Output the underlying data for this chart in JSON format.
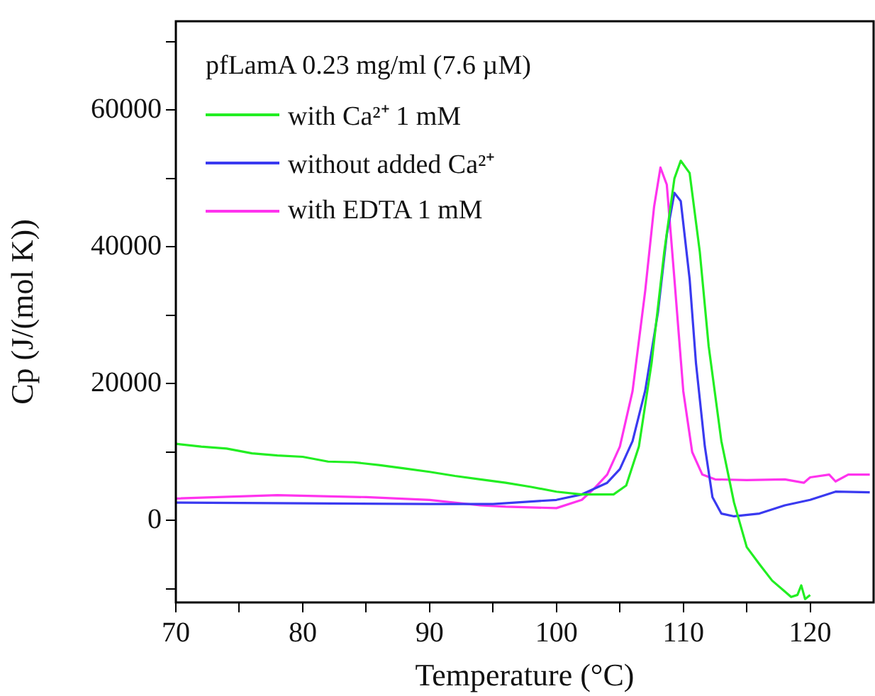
{
  "chart_data": {
    "type": "line",
    "xlabel": "Temperature (°C)",
    "ylabel": "Cp (J/(mol K))",
    "annotations": [
      "pfLamA 0.23 mg/ml (7.6 µM)"
    ],
    "xlim": [
      70,
      125
    ],
    "ylim": [
      -12000,
      73000
    ],
    "xticks": [
      70,
      {
        "value": 75,
        "label": null
      },
      80,
      {
        "value": 85,
        "label": null
      },
      90,
      {
        "value": 95,
        "label": null
      },
      100,
      {
        "value": 105,
        "label": null
      },
      110,
      {
        "value": 115,
        "label": null
      },
      120
    ],
    "yticks": [
      {
        "value": -10000,
        "label": null
      },
      0,
      {
        "value": 10000,
        "label": null
      },
      20000,
      {
        "value": 30000,
        "label": null
      },
      40000,
      {
        "value": 50000,
        "label": null
      },
      60000,
      {
        "value": 70000,
        "label": null
      }
    ],
    "grid": false,
    "legend": "top left",
    "marker": "none",
    "line_style": "solid",
    "series": [
      {
        "name": "with Ca²⁺ 1 mM",
        "color": "#22ee22",
        "x": [
          70,
          72,
          74,
          76,
          78,
          80,
          82,
          84,
          86,
          88,
          90,
          92,
          94,
          96,
          98,
          100,
          102,
          104.5,
          105.5,
          106.5,
          107.5,
          108.5,
          109.3,
          109.8,
          110.5,
          111.3,
          112,
          113,
          114,
          115,
          116,
          117,
          118,
          118.5,
          119,
          119.3,
          119.6,
          120
        ],
        "values": [
          11200,
          10800,
          10500,
          9800,
          9500,
          9300,
          8600,
          8500,
          8100,
          7600,
          7100,
          6500,
          6000,
          5500,
          4900,
          4200,
          3800,
          3800,
          5100,
          10800,
          23000,
          39300,
          50000,
          52600,
          50800,
          39300,
          25500,
          11600,
          2600,
          -3900,
          -6400,
          -8800,
          -10400,
          -11200,
          -10900,
          -9500,
          -11500,
          -10900
        ]
      },
      {
        "name": "without added Ca²⁺",
        "color": "#3a3af0",
        "x": [
          70,
          80,
          90,
          95,
          100,
          102,
          104,
          105,
          106,
          107,
          108,
          108.7,
          109.3,
          109.8,
          110.5,
          111,
          111.7,
          112.3,
          113,
          114,
          116,
          118,
          120,
          122,
          124.7
        ],
        "values": [
          2600,
          2500,
          2400,
          2400,
          3000,
          3800,
          5500,
          7500,
          11600,
          19000,
          30400,
          41800,
          47900,
          46700,
          35300,
          23000,
          10800,
          3400,
          1000,
          600,
          1000,
          2200,
          3000,
          4200,
          4100
        ]
      },
      {
        "name": "with  EDTA 1 mM",
        "color": "#ff33ee",
        "x": [
          70,
          78,
          85,
          90,
          94,
          96,
          100,
          102,
          103,
          104,
          105,
          106,
          107,
          107.7,
          108.2,
          108.7,
          109.3,
          110,
          110.7,
          111.5,
          112.5,
          115,
          118,
          119.5,
          120,
          121.5,
          122,
          123,
          124.7
        ],
        "values": [
          3200,
          3700,
          3400,
          3000,
          2200,
          2000,
          1800,
          3000,
          4700,
          6700,
          10800,
          18900,
          33600,
          45900,
          51600,
          49100,
          35300,
          18900,
          10000,
          6700,
          6000,
          5900,
          6000,
          5500,
          6300,
          6700,
          5700,
          6700,
          6700
        ]
      }
    ]
  }
}
